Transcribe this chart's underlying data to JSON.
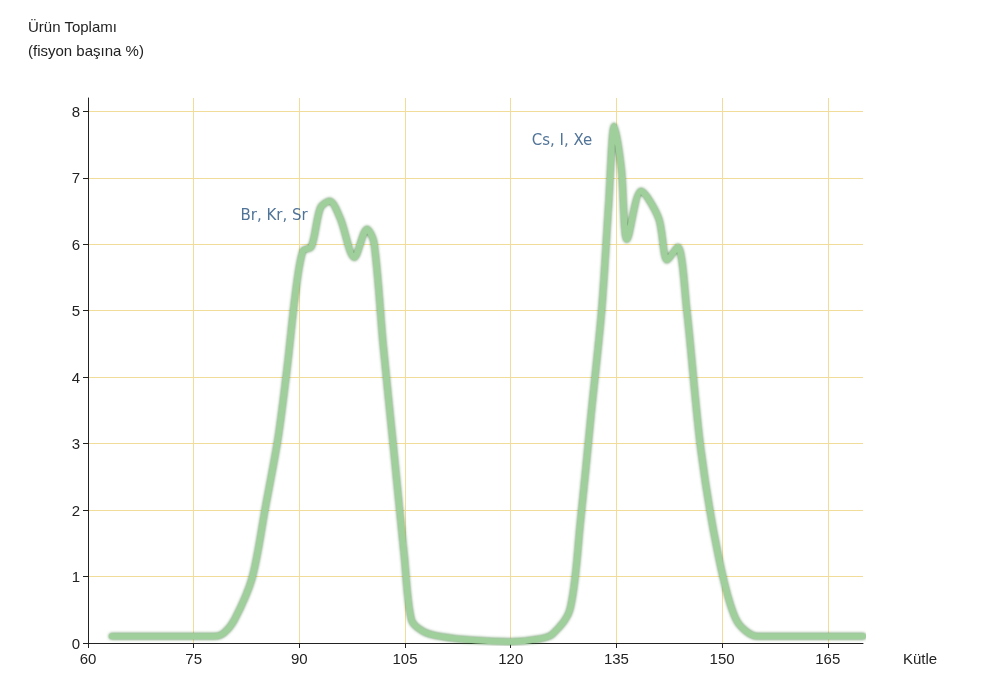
{
  "chart_data": {
    "type": "line",
    "xlabel": "Kütle",
    "ylabel": "Ürün Toplamı (fisyon başına %)",
    "series": [
      {
        "color": "#9fcf9b",
        "x": [
          63.4,
          70,
          78,
          79.3,
          80.8,
          83.3,
          85.2,
          87.0,
          88.3,
          89.4,
          90.5,
          91.7,
          93.0,
          94.3,
          95.8,
          97.8,
          99.6,
          100.6,
          101.9,
          103.4,
          104.9,
          105.9,
          107.5,
          110,
          115,
          120,
          124,
          125.9,
          128.4,
          129.9,
          131.4,
          132.9,
          133.9,
          134.7,
          135.7,
          136.5,
          138.5,
          141.0,
          142.2,
          143.7,
          145.0,
          147.0,
          149.5,
          152.0,
          155.0,
          160,
          170
        ],
        "values": [
          0.1,
          0.1,
          0.1,
          0.15,
          0.35,
          0.98,
          2.05,
          3.1,
          4.17,
          5.22,
          5.9,
          5.96,
          6.55,
          6.65,
          6.39,
          5.8,
          6.23,
          6.02,
          4.48,
          2.9,
          1.3,
          0.35,
          0.18,
          0.1,
          0.04,
          0.02,
          0.06,
          0.13,
          0.5,
          1.83,
          3.43,
          5.0,
          6.6,
          7.78,
          7.13,
          6.07,
          6.8,
          6.39,
          5.76,
          5.96,
          5.0,
          2.9,
          1.3,
          0.35,
          0.1,
          0.1,
          0.1
        ]
      }
    ],
    "xlim": [
      60,
      170
    ],
    "xticks": [
      60,
      75,
      90,
      105,
      120,
      135,
      150,
      165
    ],
    "ylim": [
      0,
      8.2
    ],
    "yticks": [
      0,
      1,
      2,
      3,
      4,
      5,
      6,
      7,
      8
    ],
    "grid": true,
    "marker": "none",
    "line_style": "solid",
    "annotations": [
      {
        "text": "Br, Kr, Sr",
        "x": 94.3,
        "y": 6.65
      },
      {
        "text": "Cs, I, Xe",
        "x": 134.7,
        "y": 7.78
      }
    ]
  }
}
